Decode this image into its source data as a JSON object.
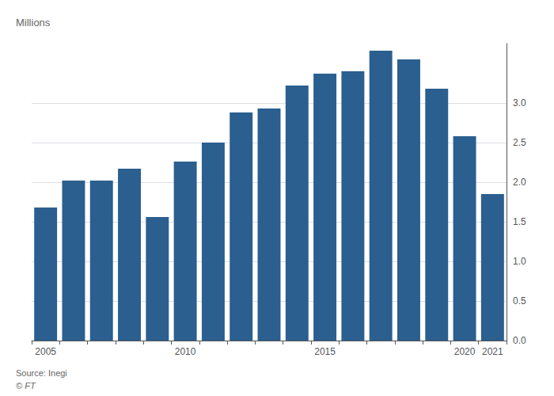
{
  "chart_data": {
    "type": "bar",
    "categories": [
      "2005",
      null,
      null,
      null,
      null,
      "2010",
      null,
      null,
      null,
      null,
      "2015",
      null,
      null,
      null,
      null,
      "2020",
      "2021"
    ],
    "values": [
      1.68,
      2.02,
      2.02,
      2.17,
      1.56,
      2.26,
      2.5,
      2.88,
      2.93,
      3.22,
      3.37,
      3.4,
      3.66,
      3.55,
      3.18,
      2.58,
      1.85
    ],
    "color": "#2a5f8f",
    "ylabel": "Millions",
    "ylim": [
      0,
      3.75
    ],
    "yticks": [
      {
        "value": 0,
        "label": "0.0"
      },
      0.5,
      {
        "value": 1.0,
        "label": "1.0"
      },
      1.5,
      {
        "value": 2.0,
        "label": "2.0"
      },
      2.5,
      {
        "value": 3.0,
        "label": "3.0"
      }
    ],
    "grid": true,
    "annotations": [
      "Source: Inegi",
      "© FT"
    ]
  }
}
